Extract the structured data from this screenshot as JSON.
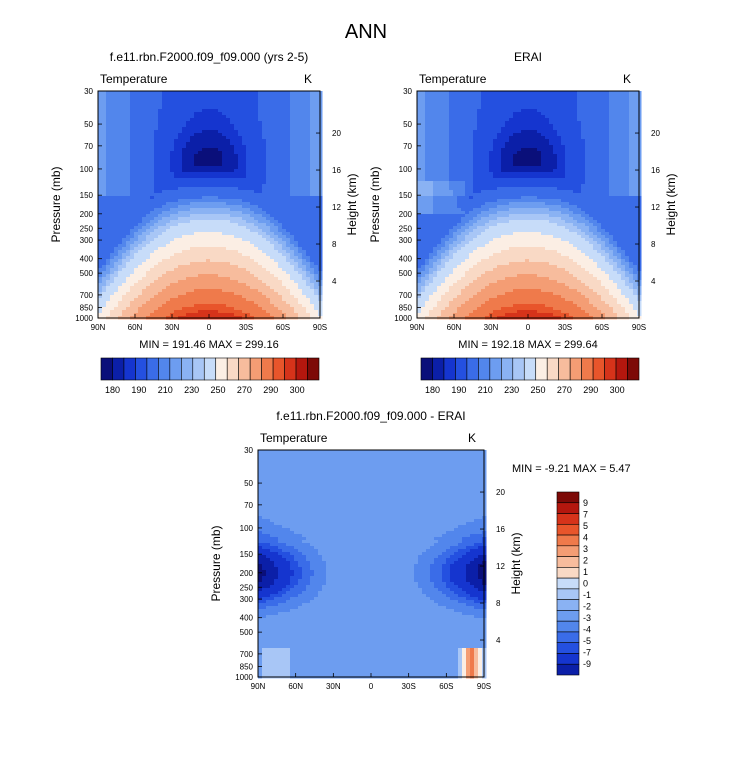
{
  "page_title": "ANN",
  "colors": {
    "blue_scale": [
      "#0a0f7a",
      "#0b1fa8",
      "#1535cf",
      "#2450e0",
      "#3a6ce8",
      "#5286ec",
      "#6d9df0",
      "#8ab2f3",
      "#a8c6f6",
      "#c7dcf9",
      "#fbeee4",
      "#f9d9c5",
      "#f7bc9d",
      "#f49d74",
      "#ef7a4b",
      "#e8552b",
      "#d6331a",
      "#b4170e",
      "#7d0a07"
    ]
  },
  "chart_data": [
    {
      "type": "heatmap",
      "title": "f.e11.rbn.F2000.f09_f09.000 (yrs 2-5)",
      "variable_label": "Temperature",
      "units_label": "K",
      "ylabel": "Pressure (mb)",
      "ylabel_right": "Height (km)",
      "x_ticks": [
        "90N",
        "60N",
        "30N",
        "0",
        "30S",
        "60S",
        "90S"
      ],
      "y_ticks": [
        "30",
        "50",
        "70",
        "100",
        "150",
        "200",
        "250",
        "300",
        "400",
        "500",
        "700",
        "850",
        "1000"
      ],
      "y_right_ticks": [
        "20",
        "16",
        "12",
        "8",
        "4"
      ],
      "min_max_text": "MIN = 191.46  MAX = 299.16",
      "colorbar": {
        "orientation": "horizontal",
        "labels": [
          "180",
          "190",
          "210",
          "230",
          "250",
          "270",
          "290",
          "300"
        ]
      },
      "min": 191.46,
      "max": 299.16
    },
    {
      "type": "heatmap",
      "title": "ERAI",
      "variable_label": "Temperature",
      "units_label": "K",
      "ylabel": "Pressure (mb)",
      "ylabel_right": "Height (km)",
      "x_ticks": [
        "90N",
        "60N",
        "30N",
        "0",
        "30S",
        "60S",
        "90S"
      ],
      "y_ticks": [
        "30",
        "50",
        "70",
        "100",
        "150",
        "200",
        "250",
        "300",
        "400",
        "500",
        "700",
        "850",
        "1000"
      ],
      "y_right_ticks": [
        "20",
        "16",
        "12",
        "8",
        "4"
      ],
      "min_max_text": "MIN = 192.18  MAX = 299.64",
      "colorbar": {
        "orientation": "horizontal",
        "labels": [
          "180",
          "190",
          "210",
          "230",
          "250",
          "270",
          "290",
          "300"
        ]
      },
      "min": 192.18,
      "max": 299.64
    },
    {
      "type": "heatmap",
      "title": "f.e11.rbn.F2000.f09_f09.000 - ERAI",
      "variable_label": "Temperature",
      "units_label": "K",
      "ylabel": "Pressure (mb)",
      "ylabel_right": "Height (km)",
      "x_ticks": [
        "90N",
        "60N",
        "30N",
        "0",
        "30S",
        "60S",
        "90S"
      ],
      "y_ticks": [
        "30",
        "50",
        "70",
        "100",
        "150",
        "200",
        "250",
        "300",
        "400",
        "500",
        "700",
        "850",
        "1000"
      ],
      "y_right_ticks": [
        "20",
        "16",
        "12",
        "8",
        "4"
      ],
      "min_max_text": "MIN = -9.21  MAX =  5.47",
      "colorbar": {
        "orientation": "vertical",
        "labels": [
          "9",
          "7",
          "5",
          "4",
          "3",
          "2",
          "1",
          "0",
          "-1",
          "-2",
          "-3",
          "-4",
          "-5",
          "-7",
          "-9"
        ]
      },
      "min": -9.21,
      "max": 5.47
    }
  ]
}
